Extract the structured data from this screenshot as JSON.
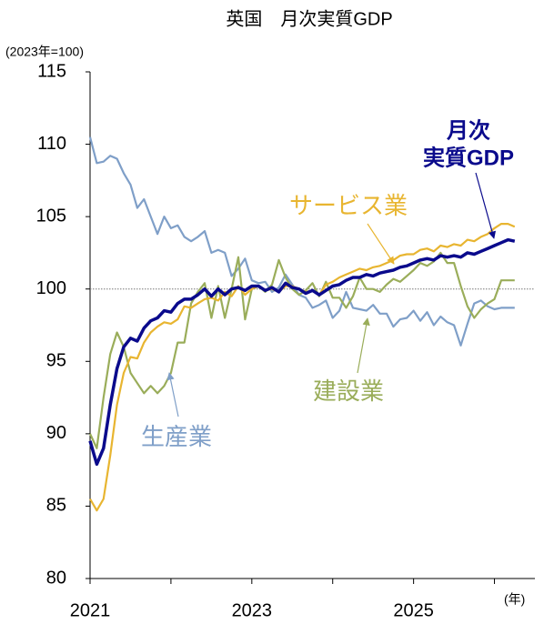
{
  "chart_data": {
    "type": "line",
    "title": "英国　月次実質GDP",
    "y_unit": "(2023年=100)",
    "x_unit": "(年)",
    "x": [
      0,
      1,
      2,
      3,
      4,
      5,
      6,
      7,
      8,
      9,
      10,
      11,
      12,
      13,
      14,
      15,
      16,
      17,
      18,
      19,
      20,
      21,
      22,
      23,
      24,
      25,
      26,
      27,
      28,
      29,
      30,
      31,
      32,
      33,
      34,
      35,
      36,
      37,
      38,
      39,
      40,
      41,
      42,
      43,
      44,
      45,
      46,
      47,
      48,
      49,
      50,
      51,
      52,
      53,
      54,
      55,
      56,
      57,
      58,
      59,
      60,
      61,
      62,
      63
    ],
    "xlim": [
      0,
      66
    ],
    "xticks": [
      {
        "value": 0,
        "label": "2021"
      },
      {
        "value": 24,
        "label": "2023"
      },
      {
        "value": 48,
        "label": "2025"
      }
    ],
    "xminor_ticks": [
      12,
      36,
      60
    ],
    "ylim": [
      80,
      115
    ],
    "yticks": [
      80,
      85,
      90,
      95,
      100,
      105,
      110,
      115
    ],
    "reference_line": 100,
    "series": [
      {
        "name": "生産業",
        "color": "#7f9fc8",
        "values": [
          110.5,
          108.7,
          108.8,
          109.2,
          109,
          108,
          107.2,
          105.6,
          106.2,
          105,
          103.8,
          105,
          104.2,
          104.4,
          103.6,
          103.3,
          103.6,
          104,
          102.5,
          102.7,
          102.5,
          100.9,
          101.4,
          102.1,
          100.6,
          100.4,
          100.5,
          99.8,
          100.1,
          101,
          100.3,
          99.6,
          99.4,
          98.7,
          98.9,
          99.2,
          98,
          98.5,
          99.8,
          98.7,
          98.6,
          98.5,
          98.9,
          98.3,
          98.3,
          97.4,
          97.9,
          98,
          98.5,
          97.8,
          98.4,
          97.5,
          98.1,
          97.7,
          97.5,
          96.1,
          97.6,
          99,
          99.2,
          98.8,
          98.6,
          98.7,
          98.7,
          98.7
        ]
      },
      {
        "name": "建設業",
        "color": "#9aad5a",
        "values": [
          90,
          89,
          92.5,
          95.5,
          97,
          96,
          94.2,
          93.5,
          92.8,
          93.3,
          92.8,
          93.3,
          94.2,
          96.3,
          96.3,
          99,
          99.8,
          100.4,
          98,
          100.2,
          98,
          100,
          102.2,
          97.9,
          100,
          100.2,
          99.8,
          100.3,
          102,
          100.8,
          100,
          99.6,
          99.9,
          100.4,
          99.5,
          100.5,
          99.4,
          99.4,
          98.7,
          99.5,
          100.8,
          100,
          100,
          99.8,
          100.3,
          100.7,
          100.5,
          100.9,
          101.3,
          101.8,
          101.6,
          101.9,
          102.5,
          101.8,
          101.8,
          100.2,
          98.8,
          98,
          98.6,
          99,
          99.3,
          100.6,
          100.6,
          100.6
        ]
      },
      {
        "name": "サービス業",
        "color": "#e8b530",
        "values": [
          85.5,
          84.7,
          85.5,
          88.5,
          92,
          94.2,
          95.3,
          95.2,
          96.3,
          97,
          97.4,
          97.7,
          97.6,
          97.9,
          98.8,
          98.7,
          99,
          99.3,
          99.4,
          99.2,
          99.8,
          99.5,
          100.2,
          99.6,
          100,
          100.2,
          99.9,
          100,
          99.8,
          100.2,
          100.2,
          100,
          99.8,
          99.9,
          99.6,
          100.3,
          100.5,
          100.8,
          101,
          101.2,
          101.4,
          101.3,
          101.5,
          101.6,
          101.8,
          102,
          102.3,
          102.4,
          102.4,
          102.7,
          102.8,
          102.6,
          103,
          102.9,
          103.1,
          103,
          103.4,
          103.3,
          103.6,
          103.8,
          104.2,
          104.5,
          104.5,
          104.3
        ]
      },
      {
        "name_lines": [
          "月次",
          "実質GDP"
        ],
        "color": "#0a0a8c",
        "values": [
          89.5,
          87.9,
          89,
          92,
          94.5,
          96,
          96.6,
          96.4,
          97.3,
          97.8,
          98,
          98.5,
          98.4,
          99,
          99.3,
          99.3,
          99.6,
          100,
          99.5,
          100,
          99.6,
          100,
          100.1,
          99.9,
          100.2,
          100.2,
          99.9,
          100.1,
          99.8,
          100.4,
          100.1,
          100,
          99.7,
          99.9,
          99.6,
          99.9,
          100.2,
          100.3,
          100.6,
          100.8,
          100.8,
          101,
          100.9,
          101.1,
          101.2,
          101.3,
          101.5,
          101.6,
          101.8,
          102,
          102.1,
          102,
          102.3,
          102.2,
          102.3,
          102.2,
          102.5,
          102.4,
          102.6,
          102.8,
          103,
          103.2,
          103.4,
          103.3
        ]
      }
    ]
  }
}
